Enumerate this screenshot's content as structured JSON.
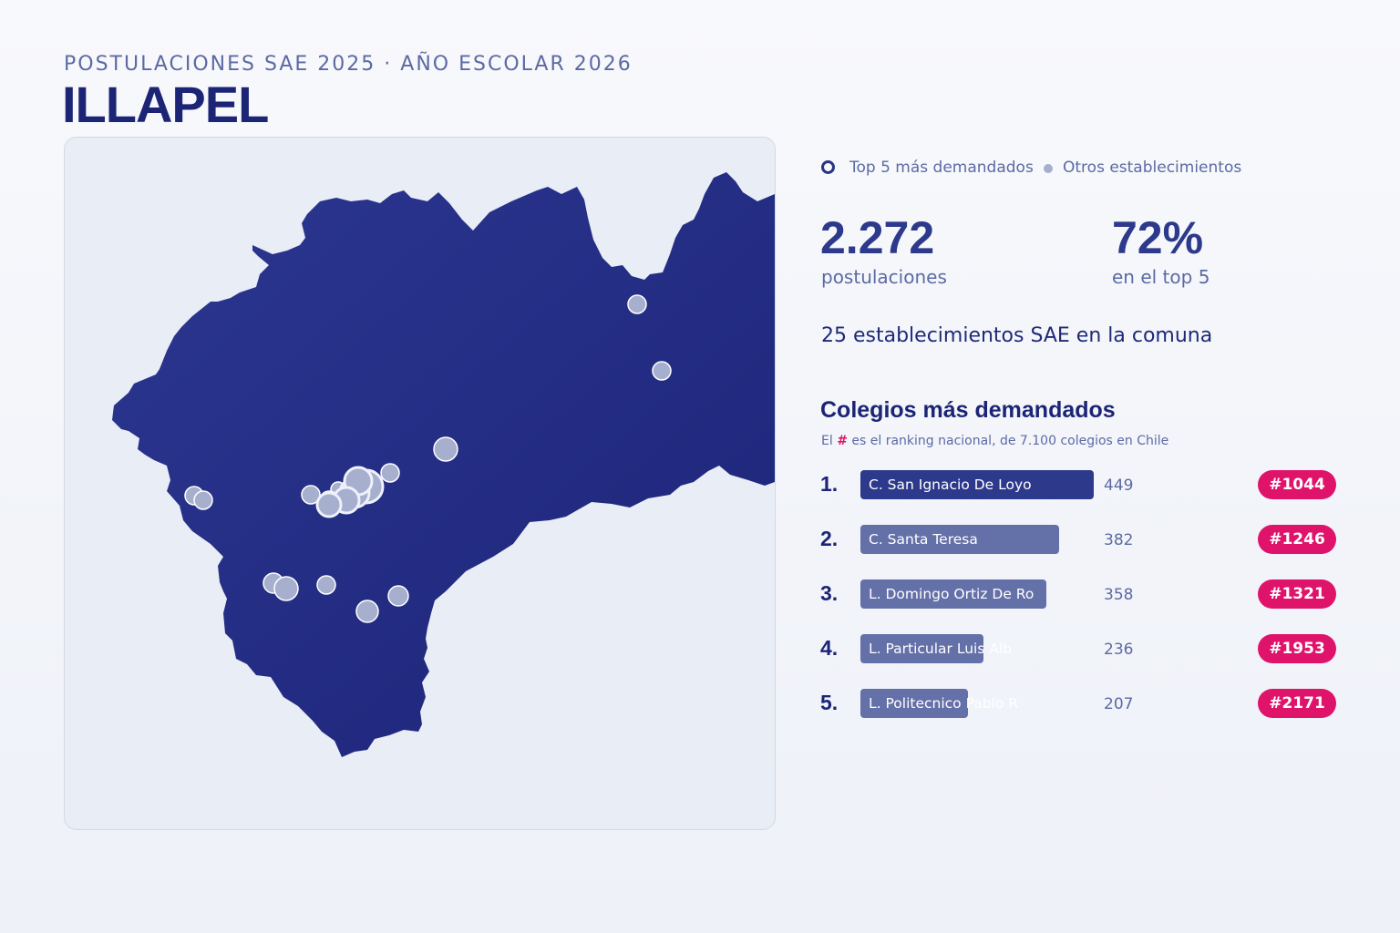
{
  "header": {
    "eyebrow": "POSTULACIONES SAE 2025 · AÑO ESCOLAR 2026",
    "title": "ILLAPEL"
  },
  "colors": {
    "region_fill": "#252f86",
    "accent": "#2d3a8c",
    "badge": "#e0136a",
    "marker": "#a6afcd"
  },
  "legend": {
    "top5_label": "Top 5 más demandados",
    "others_label": "Otros establecimientos"
  },
  "stats": {
    "postulaciones_value": "2.272",
    "postulaciones_label": "postulaciones",
    "top5_value": "72%",
    "top5_label": "en el top 5"
  },
  "establecimientos_text": "25 establecimientos SAE en la comuna",
  "ranking": {
    "title": "Colegios más demandados",
    "subtitle_before": "El",
    "subtitle_hash": "#",
    "subtitle_after": "es el ranking nacional, de 7.100 colegios en Chile",
    "schools": [
      {
        "rank": "1.",
        "name": "C. San Ignacio De Loyo",
        "count": 449,
        "badge": "#1044"
      },
      {
        "rank": "2.",
        "name": "C. Santa Teresa",
        "count": 382,
        "badge": "#1246"
      },
      {
        "rank": "3.",
        "name": "L. Domingo Ortiz De Ro",
        "count": 358,
        "badge": "#1321"
      },
      {
        "rank": "4.",
        "name": "L. Particular Luis Alb",
        "count": 236,
        "badge": "#1953"
      },
      {
        "rank": "5.",
        "name": "L. Politecnico Pablo R",
        "count": 207,
        "badge": "#2171"
      }
    ]
  }
}
